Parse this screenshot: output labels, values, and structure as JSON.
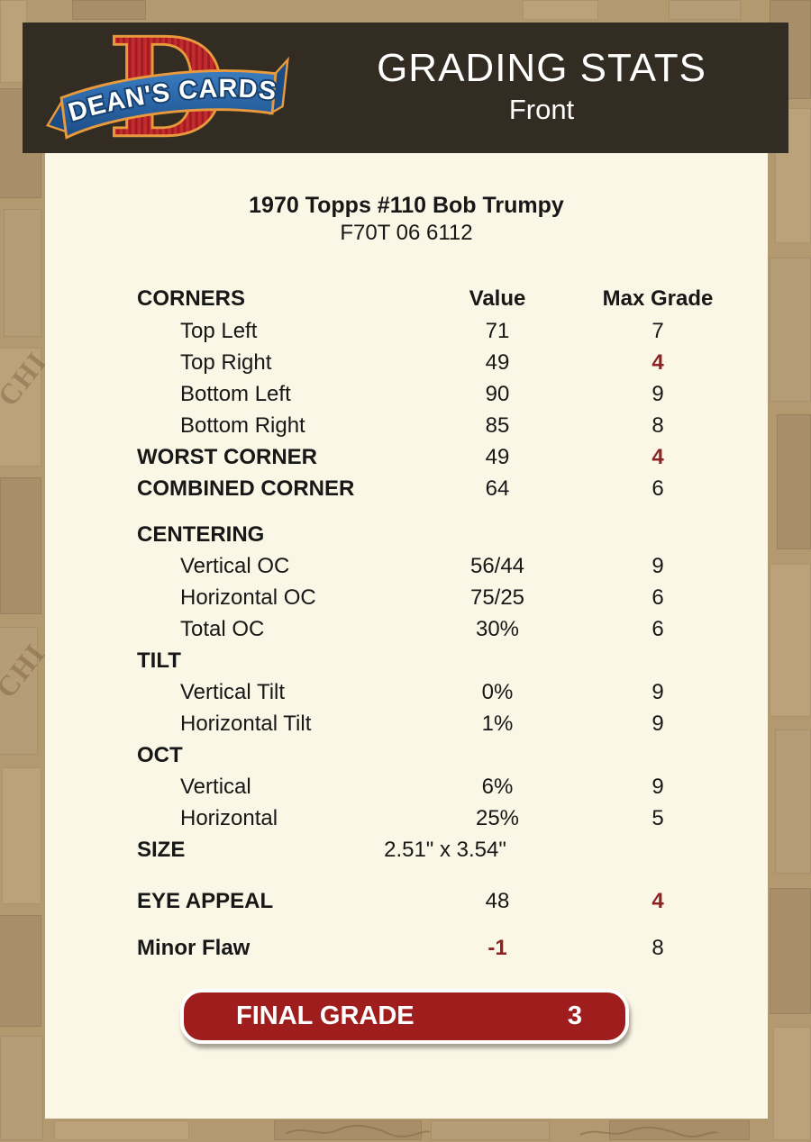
{
  "colors": {
    "page_bg": "#b29970",
    "header_bg": "#332c22",
    "panel_bg": "#fbf7e6",
    "accent_red": "#8e2121",
    "button_red": "#a01d1d",
    "logo_red": "#c42a2e",
    "logo_blue": "#1c4c86",
    "logo_gold": "#e89a3c"
  },
  "header": {
    "logo_text": "DEAN'S CARDS",
    "logo_letter": "D",
    "title": "GRADING STATS",
    "subtitle": "Front"
  },
  "card": {
    "title": "1970 Topps #110 Bob Trumpy",
    "code": "F70T 06 6112"
  },
  "table": {
    "header": {
      "label": "CORNERS",
      "value": "Value",
      "max": "Max Grade"
    },
    "rows": [
      {
        "label": "Top Left",
        "value": "71",
        "max": "7",
        "indent": true
      },
      {
        "label": "Top Right",
        "value": "49",
        "max": "4",
        "indent": true,
        "max_red": true
      },
      {
        "label": "Bottom Left",
        "value": "90",
        "max": "9",
        "indent": true
      },
      {
        "label": "Bottom Right",
        "value": "85",
        "max": "8",
        "indent": true
      },
      {
        "label": "WORST CORNER",
        "value": "49",
        "max": "4",
        "bold": true,
        "max_red": true
      },
      {
        "label": "COMBINED CORNER",
        "value": "64",
        "max": "6",
        "bold": true
      },
      {
        "label": "CENTERING",
        "value": "",
        "max": "",
        "bold": true,
        "gap_before": 16
      },
      {
        "label": "Vertical OC",
        "value": "56/44",
        "max": "9",
        "indent": true
      },
      {
        "label": "Horizontal OC",
        "value": "75/25",
        "max": "6",
        "indent": true
      },
      {
        "label": "Total OC",
        "value": "30%",
        "max": "6",
        "indent": true
      },
      {
        "label": "TILT",
        "value": "",
        "max": "",
        "bold": true
      },
      {
        "label": "Vertical Tilt",
        "value": "0%",
        "max": "9",
        "indent": true
      },
      {
        "label": "Horizontal Tilt",
        "value": "1%",
        "max": "9",
        "indent": true
      },
      {
        "label": "OCT",
        "value": "",
        "max": "",
        "bold": true
      },
      {
        "label": "Vertical",
        "value": "6%",
        "max": "9",
        "indent": true
      },
      {
        "label": "Horizontal",
        "value": "25%",
        "max": "5",
        "indent": true
      },
      {
        "label": "SIZE",
        "value": "2.51\" x 3.54\"",
        "max": "",
        "bold": true,
        "value_wide": true
      },
      {
        "label": "EYE APPEAL",
        "value": "48",
        "max": "4",
        "bold": true,
        "max_red": true,
        "gap_before": 22
      },
      {
        "label": "Minor Flaw",
        "value": "-1",
        "max": "8",
        "bold": true,
        "value_red": true,
        "gap_before": 17
      }
    ]
  },
  "final_grade": {
    "label": "FINAL GRADE",
    "value": "3"
  },
  "background": {
    "ghost_text": "CHI"
  }
}
